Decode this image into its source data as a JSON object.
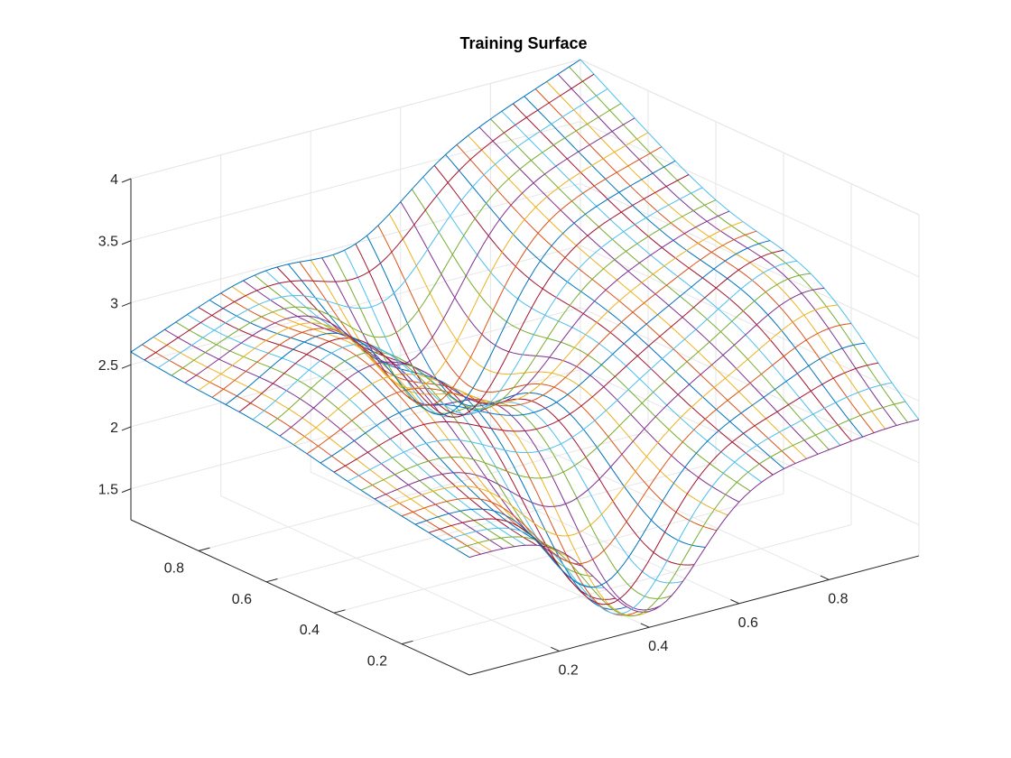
{
  "chart_data": {
    "type": "surface",
    "render": "mesh",
    "title": "Training Surface",
    "xlabel": "",
    "ylabel": "",
    "zlabel": "",
    "xlim": [
      0,
      1
    ],
    "ylim": [
      0,
      1
    ],
    "zlim": [
      1.25,
      4
    ],
    "x_ticks": [
      "0.2",
      "0.4",
      "0.6",
      "0.8"
    ],
    "y_ticks": [
      "0.2",
      "0.4",
      "0.6",
      "0.8"
    ],
    "z_ticks": [
      "1.5",
      "2",
      "2.5",
      "3",
      "3.5",
      "4"
    ],
    "grid": true,
    "corner_values": {
      "x0_y0": 2.2,
      "x1_y0": 2.3,
      "x0_y1": 2.6,
      "x1_y1": 4.0
    },
    "features": [
      {
        "description": "ridge",
        "x": 0.2,
        "y": 0.6,
        "z": 2.9
      },
      {
        "description": "trough",
        "x": 0.4,
        "y": 0.1,
        "z": 1.3
      },
      {
        "description": "trough",
        "x": 0.5,
        "y": 0.75,
        "z": 2.0
      },
      {
        "description": "ridge",
        "x": 0.95,
        "y": 0.3,
        "z": 3.1
      },
      {
        "description": "ridge",
        "x": 0.55,
        "y": 0.3,
        "z": 2.4
      }
    ],
    "colors": [
      "#0072BD",
      "#D95319",
      "#EDB120",
      "#7E2F8E",
      "#77AC30",
      "#4DBEEE",
      "#A2142F"
    ]
  }
}
